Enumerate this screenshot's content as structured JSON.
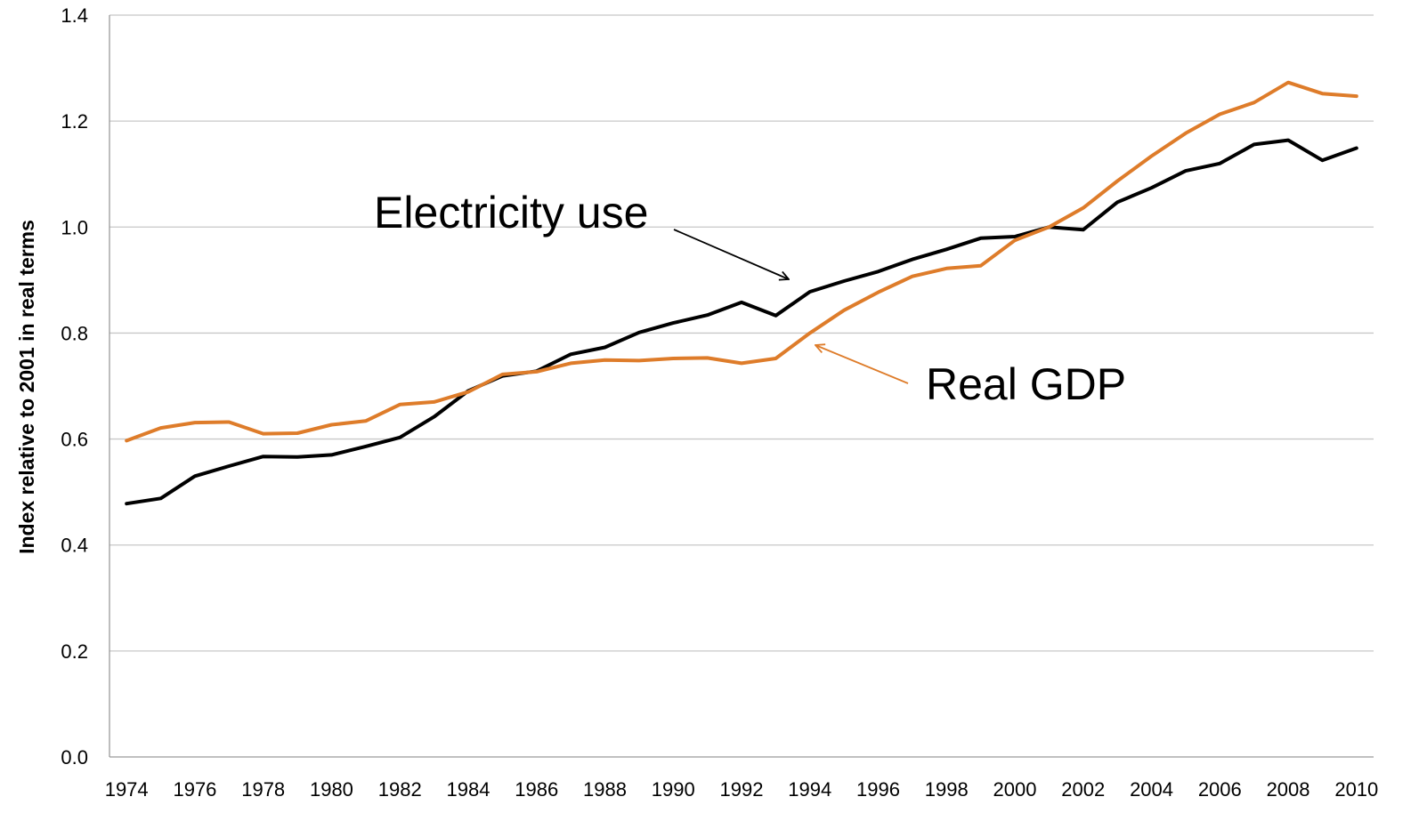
{
  "chart_data": {
    "type": "line",
    "title": "",
    "xlabel": "",
    "ylabel": "Index relative to 2001 in real terms",
    "ylim": [
      0,
      1.4
    ],
    "yticks": [
      "0.0",
      "0.2",
      "0.4",
      "0.6",
      "0.8",
      "1.0",
      "1.2",
      "1.4"
    ],
    "grid": "horizontal",
    "legend": "none",
    "x": [
      1974,
      1975,
      1976,
      1977,
      1978,
      1979,
      1980,
      1981,
      1982,
      1983,
      1984,
      1985,
      1986,
      1987,
      1988,
      1989,
      1990,
      1991,
      1992,
      1993,
      1994,
      1995,
      1996,
      1997,
      1998,
      1999,
      2000,
      2001,
      2002,
      2003,
      2004,
      2005,
      2006,
      2007,
      2008,
      2009,
      2010
    ],
    "xticks": [
      "1974",
      "1976",
      "1978",
      "1980",
      "1982",
      "1984",
      "1986",
      "1988",
      "1990",
      "1992",
      "1994",
      "1996",
      "1998",
      "2000",
      "2002",
      "2004",
      "2006",
      "2008",
      "2010"
    ],
    "series": [
      {
        "name": "Electricity use",
        "color": "#000000",
        "values": [
          0.478,
          0.488,
          0.53,
          0.549,
          0.567,
          0.566,
          0.57,
          0.586,
          0.603,
          0.642,
          0.691,
          0.719,
          0.728,
          0.76,
          0.773,
          0.801,
          0.819,
          0.834,
          0.858,
          0.833,
          0.878,
          0.898,
          0.916,
          0.939,
          0.958,
          0.979,
          0.982,
          1.0,
          0.995,
          1.047,
          1.074,
          1.106,
          1.12,
          1.156,
          1.164,
          1.126,
          1.149
        ]
      },
      {
        "name": "Real GDP",
        "color": "#DE7C2A",
        "values": [
          0.597,
          0.621,
          0.631,
          0.632,
          0.61,
          0.611,
          0.627,
          0.634,
          0.665,
          0.67,
          0.689,
          0.722,
          0.727,
          0.743,
          0.749,
          0.748,
          0.752,
          0.753,
          0.743,
          0.752,
          0.8,
          0.843,
          0.877,
          0.907,
          0.922,
          0.927,
          0.975,
          1.0,
          1.036,
          1.087,
          1.134,
          1.177,
          1.213,
          1.235,
          1.273,
          1.252,
          1.247
        ]
      }
    ],
    "annotations": [
      {
        "text": "Electricity use",
        "series": "Electricity use",
        "points_to_year": 1993.5
      },
      {
        "text": "Real GDP",
        "series": "Real GDP",
        "points_to_year": 1994.2
      }
    ]
  }
}
